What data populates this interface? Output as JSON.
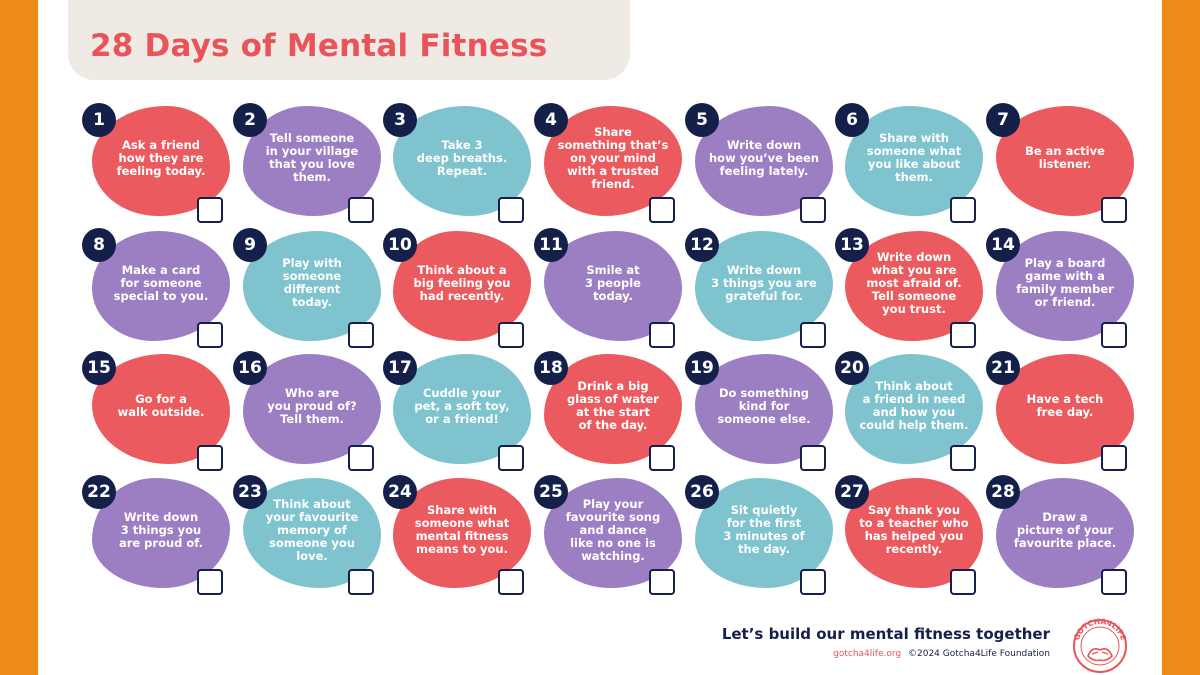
{
  "header": {
    "title": "28 Days of Mental Fitness"
  },
  "days": [
    {
      "num": "1",
      "text": "Ask a friend\nhow they are\nfeeling today.",
      "color": "red"
    },
    {
      "num": "2",
      "text": "Tell someone\nin your village\nthat you love\nthem.",
      "color": "purple"
    },
    {
      "num": "3",
      "text": "Take 3\ndeep breaths.\nRepeat.",
      "color": "teal"
    },
    {
      "num": "4",
      "text": "Share\nsomething that’s\non your mind\nwith a trusted\nfriend.",
      "color": "red"
    },
    {
      "num": "5",
      "text": "Write down\nhow you’ve been\nfeeling lately.",
      "color": "purple"
    },
    {
      "num": "6",
      "text": "Share with\nsomeone what\nyou like about\nthem.",
      "color": "teal"
    },
    {
      "num": "7",
      "text": "Be an active\nlistener.",
      "color": "red"
    },
    {
      "num": "8",
      "text": "Make a card\nfor someone\nspecial to you.",
      "color": "purple"
    },
    {
      "num": "9",
      "text": "Play with\nsomeone\ndifferent\ntoday.",
      "color": "teal"
    },
    {
      "num": "10",
      "text": "Think about a\nbig feeling you\nhad recently.",
      "color": "red"
    },
    {
      "num": "11",
      "text": "Smile at\n3 people\ntoday.",
      "color": "purple"
    },
    {
      "num": "12",
      "text": "Write down\n3 things you are\ngrateful for.",
      "color": "teal"
    },
    {
      "num": "13",
      "text": "Write down\nwhat you are\nmost afraid of.\nTell someone\nyou trust.",
      "color": "red"
    },
    {
      "num": "14",
      "text": "Play a board\ngame with a\nfamily member\nor friend.",
      "color": "purple"
    },
    {
      "num": "15",
      "text": "Go for a\nwalk outside.",
      "color": "red"
    },
    {
      "num": "16",
      "text": "Who are\nyou proud of?\nTell them.",
      "color": "purple"
    },
    {
      "num": "17",
      "text": "Cuddle your\npet, a soft toy,\nor a friend!",
      "color": "teal"
    },
    {
      "num": "18",
      "text": "Drink a big\nglass of water\nat the start\nof the day.",
      "color": "red"
    },
    {
      "num": "19",
      "text": "Do something\nkind for\nsomeone else.",
      "color": "purple"
    },
    {
      "num": "20",
      "text": "Think about\na friend in need\nand how you\ncould help them.",
      "color": "teal"
    },
    {
      "num": "21",
      "text": "Have a tech\nfree day.",
      "color": "red"
    },
    {
      "num": "22",
      "text": "Write down\n3 things you\nare proud of.",
      "color": "purple"
    },
    {
      "num": "23",
      "text": "Think about\nyour favourite\nmemory of\nsomeone you\nlove.",
      "color": "teal"
    },
    {
      "num": "24",
      "text": "Share with\nsomeone what\nmental fitness\nmeans to you.",
      "color": "red"
    },
    {
      "num": "25",
      "text": "Play your\nfavourite song\nand dance\nlike no one is\nwatching.",
      "color": "purple"
    },
    {
      "num": "26",
      "text": "Sit quietly\nfor the first\n3 minutes of\nthe day.",
      "color": "teal"
    },
    {
      "num": "27",
      "text": "Say thank you\nto a teacher who\nhas helped you\nrecently.",
      "color": "red"
    },
    {
      "num": "28",
      "text": "Draw a\npicture of your\nfavourite place.",
      "color": "purple"
    }
  ],
  "footer": {
    "tagline": "Let’s build our mental fitness together",
    "website": "gotcha4life.org",
    "copyright": "©2024 Gotcha4Life Foundation",
    "logo_text": "GOTCHA4LIFE"
  },
  "colors": {
    "red": "#EA5A5E",
    "purple": "#9C7EC2",
    "teal": "#7EC3CE",
    "navy": "#15204A",
    "orange": "#ED8B16"
  }
}
